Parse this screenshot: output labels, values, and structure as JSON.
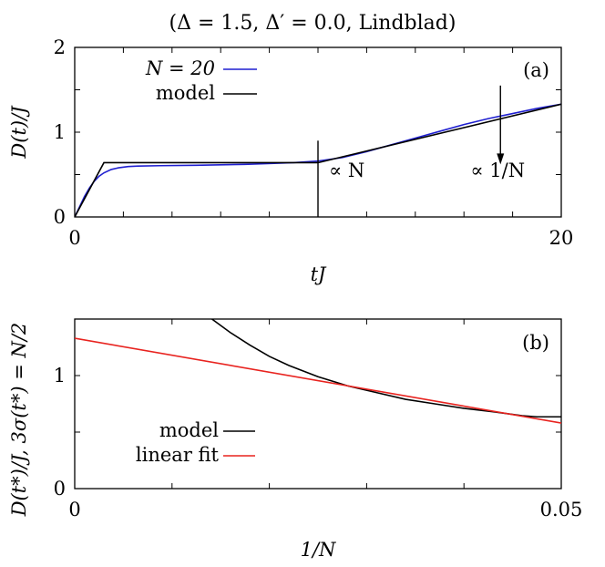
{
  "figure_title": "(Δ = 1.5, Δ′ = 0.0, Lindblad)",
  "colors": {
    "blue": "#1f1fd0",
    "black": "#000000",
    "red": "#e8231f"
  },
  "chart_data": [
    {
      "type": "line",
      "panel_label": "(a)",
      "xlabel": "tJ",
      "ylabel": "D(t)/J",
      "xlim": [
        0,
        20
      ],
      "ylim": [
        0,
        2
      ],
      "xticks": [
        0,
        20
      ],
      "yticks": [
        0,
        1,
        2
      ],
      "legend_position": "top-left",
      "series": [
        {
          "name": "N = 20",
          "color": "#1f1fd0",
          "x": [
            0,
            0.2,
            0.4,
            0.6,
            0.8,
            1.0,
            1.2,
            1.5,
            1.8,
            2.2,
            2.6,
            3.5,
            5,
            7,
            9,
            10,
            11,
            12,
            13,
            14,
            15,
            16,
            17,
            18,
            19,
            20
          ],
          "y": [
            0,
            0.12,
            0.24,
            0.34,
            0.42,
            0.48,
            0.52,
            0.56,
            0.58,
            0.595,
            0.6,
            0.605,
            0.61,
            0.62,
            0.64,
            0.66,
            0.7,
            0.77,
            0.85,
            0.93,
            1.01,
            1.09,
            1.16,
            1.22,
            1.28,
            1.33
          ]
        },
        {
          "name": "model",
          "color": "#000000",
          "x": [
            0,
            1.2,
            10,
            20
          ],
          "y": [
            0,
            0.64,
            0.64,
            1.33
          ]
        }
      ],
      "annotations": [
        {
          "text": "∝ N",
          "x": 10,
          "line_y": [
            0,
            0.9
          ]
        },
        {
          "text": "∝ 1/N",
          "x": 17.5,
          "arrow_y": [
            1.55,
            0.62
          ]
        }
      ]
    },
    {
      "type": "line",
      "panel_label": "(b)",
      "xlabel": "1/N",
      "ylabel": "D(t*)/J, 3σ(t*) = N/2",
      "xlim": [
        0,
        0.05
      ],
      "ylim": [
        0,
        1.5
      ],
      "xticks": [
        0,
        0.05
      ],
      "yticks": [
        0,
        1
      ],
      "legend_position": "bottom-left",
      "series": [
        {
          "name": "model",
          "color": "#000000",
          "x": [
            0.0141,
            0.016,
            0.018,
            0.02,
            0.022,
            0.025,
            0.028,
            0.031,
            0.034,
            0.037,
            0.04,
            0.043,
            0.046,
            0.0475,
            0.05
          ],
          "y": [
            1.5,
            1.38,
            1.27,
            1.17,
            1.09,
            0.99,
            0.91,
            0.85,
            0.79,
            0.75,
            0.71,
            0.68,
            0.645,
            0.635,
            0.635
          ]
        },
        {
          "name": "linear fit",
          "color": "#e8231f",
          "x": [
            0,
            0.05
          ],
          "y": [
            1.33,
            0.58
          ]
        }
      ]
    }
  ]
}
